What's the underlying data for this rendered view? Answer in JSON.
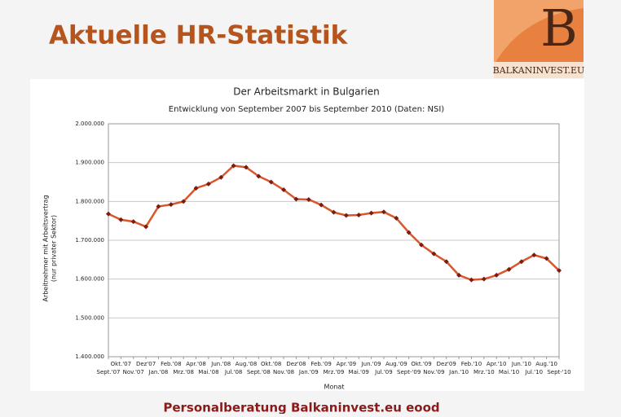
{
  "slide_title": "Aktuelle HR-Statistik",
  "logo": {
    "letter": "B",
    "name": "Balkaninvest.eu"
  },
  "footer": "Personalberatung Balkaninvest.eu eood",
  "chart_data": {
    "type": "line",
    "title": "Der Arbeitsmarkt in Bulgarien",
    "subtitle": "Entwicklung von September 2007 bis September 2010 (Daten: NSI)",
    "y_label": [
      "Arbeitnehmer mit Arbeitsvertrag",
      "(nur privater Sektor)"
    ],
    "x_label": "Monat",
    "categories": [
      "Sept.'07",
      "Okt.'07",
      "Nov.'07",
      "Dez'07",
      "Jan.'08",
      "Feb.'08",
      "Mrz.'08",
      "Apr.'08",
      "Mai.'08",
      "Jun.'08",
      "Jul.'08",
      "Aug.'08",
      "Sept.'08",
      "Okt.'08",
      "Nov.'08",
      "Dez'08",
      "Jan.'09",
      "Feb.'09",
      "Mrz.'09",
      "Apr.'09",
      "Mai.'09",
      "Jun.'09",
      "Jul.'09",
      "Aug.'09",
      "Sept-'09",
      "Okt.'09",
      "Nov.'09",
      "Dez'09",
      "Jan.'10",
      "Feb.'10",
      "Mrz.'10",
      "Apr.'10",
      "Mai.'10",
      "Jun.'10",
      "Jul.'10",
      "Aug.'10",
      "Sept-'10"
    ],
    "values": [
      1768000,
      1753000,
      1748000,
      1735000,
      1787000,
      1792000,
      1800000,
      1834000,
      1845000,
      1862000,
      1892000,
      1888000,
      1865000,
      1850000,
      1830000,
      1806000,
      1805000,
      1791000,
      1772000,
      1764000,
      1765000,
      1770000,
      1773000,
      1757000,
      1720000,
      1688000,
      1665000,
      1645000,
      1610000,
      1598000,
      1600000,
      1610000,
      1625000,
      1645000,
      1662000,
      1653000,
      1622000
    ],
    "color": "#d9572b",
    "marker_color": "#7a1c12",
    "ylim": [
      1400000,
      2000000
    ],
    "yticks": [
      {
        "value": 1400000,
        "label": "1.400.000"
      },
      {
        "value": 1500000,
        "label": "1.500.000"
      },
      {
        "value": 1600000,
        "label": "1.600.000"
      },
      {
        "value": 1700000,
        "label": "1.700.000"
      },
      {
        "value": 1800000,
        "label": "1.800.000"
      },
      {
        "value": 1900000,
        "label": "1.900.000"
      },
      {
        "value": 2000000,
        "label": "2.000.000"
      }
    ],
    "grid": true
  }
}
